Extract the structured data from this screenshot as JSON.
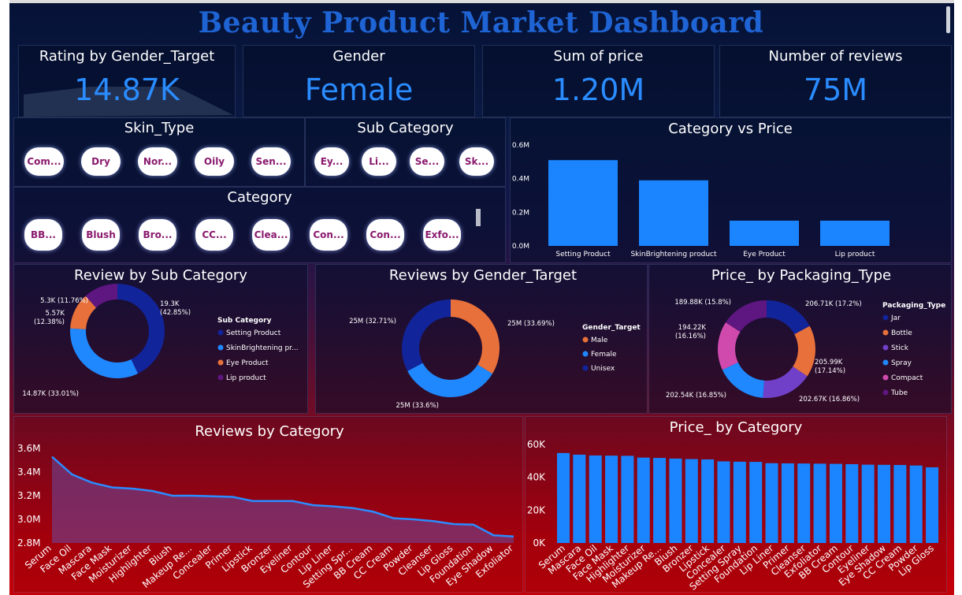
{
  "dashboard": {
    "title": "Beauty Product Market Dashboard"
  },
  "colors": {
    "accent": "#2a8cff",
    "pill_text": "#8a1a6e",
    "bar": "#1a85ff"
  },
  "kpis": [
    {
      "label": "Rating by Gender_Target",
      "value": "14.87K"
    },
    {
      "label": "Gender",
      "value": "Female"
    },
    {
      "label": "Sum of price",
      "value": "1.20M"
    },
    {
      "label": "Number of reviews",
      "value": "75M"
    }
  ],
  "slicers": {
    "skin_type": {
      "title": "Skin_Type",
      "items": [
        "Com...",
        "Dry",
        "Nor...",
        "Oily",
        "Sen..."
      ]
    },
    "sub_category": {
      "title": "Sub Category",
      "items": [
        "Ey...",
        "Li...",
        "Se...",
        "Sk..."
      ]
    },
    "category": {
      "title": "Category",
      "items": [
        "BB...",
        "Blush",
        "Bro...",
        "CC...",
        "Clea...",
        "Con...",
        "Con...",
        "Exfo..."
      ]
    }
  },
  "charts": {
    "category_vs_price": {
      "title": "Category vs Price",
      "chart_data": {
        "type": "bar",
        "categories": [
          "Setting Product",
          "SkinBrightening product",
          "Eye Product",
          "Lip product"
        ],
        "values": [
          510000,
          390000,
          150000,
          150000
        ],
        "ylim": [
          0,
          600000
        ],
        "yticks": [
          "0.0M",
          "0.2M",
          "0.4M",
          "0.6M"
        ]
      }
    },
    "review_by_sub_category": {
      "title": "Review by Sub Category",
      "legend_title": "Sub Category",
      "chart_data": {
        "type": "pie",
        "labels": [
          "Setting Product",
          "SkinBrightening pr...",
          "Eye Product",
          "Lip product"
        ],
        "values": [
          19.3,
          14.87,
          5.57,
          5.3
        ],
        "slice_labels": [
          "19.3K (42.85%)",
          "14.87K (33.01%)",
          "5.57K (12.38%)",
          "5.3K (11.76%)"
        ],
        "colors": [
          "#12249a",
          "#1f88ff",
          "#e8703a",
          "#5e1680"
        ]
      }
    },
    "reviews_by_gender_target": {
      "title": "Reviews by Gender_Target",
      "legend_title": "Gender_Target",
      "chart_data": {
        "type": "pie",
        "labels": [
          "Male",
          "Female",
          "Unisex"
        ],
        "values": [
          33.69,
          33.6,
          32.71
        ],
        "slice_labels": [
          "25M (33.69%)",
          "25M (33.6%)",
          "25M (32.71%)"
        ],
        "colors": [
          "#e8703a",
          "#1f88ff",
          "#12249a"
        ]
      }
    },
    "price_by_packaging_type": {
      "title": "Price_ by Packaging_Type",
      "legend_title": "Packaging_Type",
      "chart_data": {
        "type": "pie",
        "labels": [
          "Jar",
          "Bottle",
          "Stick",
          "Spray",
          "Compact",
          "Tube"
        ],
        "values": [
          206.71,
          205.99,
          202.67,
          202.54,
          194.22,
          189.88
        ],
        "slice_labels": [
          "206.71K (17.2%)",
          "205.99K (17.14%)",
          "202.67K (16.86%)",
          "202.54K (16.85%)",
          "194.22K (16.16%)",
          "189.88K (15.8%)"
        ],
        "colors": [
          "#12249a",
          "#e8703a",
          "#7040c8",
          "#1f88ff",
          "#d04aae",
          "#5e1680"
        ]
      }
    },
    "reviews_by_category": {
      "title": "Reviews by Category",
      "chart_data": {
        "type": "area",
        "categories": [
          "Serum",
          "Face Oil",
          "Mascara",
          "Face Mask",
          "Moisturizer",
          "Highlighter",
          "Blush",
          "Makeup Re...",
          "Concealer",
          "Primer",
          "Lipstick",
          "Bronzer",
          "Eyeliner",
          "Contour",
          "Lip Liner",
          "Setting Spr...",
          "BB Cream",
          "CC Cream",
          "Powder",
          "Cleanser",
          "Lip Gloss",
          "Foundation",
          "Eye Shadow",
          "Exfoliator"
        ],
        "values": [
          3.53,
          3.38,
          3.31,
          3.27,
          3.26,
          3.24,
          3.2,
          3.2,
          3.195,
          3.19,
          3.155,
          3.155,
          3.155,
          3.12,
          3.11,
          3.095,
          3.065,
          3.01,
          3.0,
          2.985,
          2.96,
          2.955,
          2.865,
          2.855
        ],
        "ylim": [
          2.8,
          3.6
        ],
        "yticks": [
          "2.8M",
          "3.0M",
          "3.2M",
          "3.4M",
          "3.6M"
        ]
      }
    },
    "price_by_category": {
      "title": "Price_ by Category",
      "chart_data": {
        "type": "bar",
        "categories": [
          "Serum",
          "Mascara",
          "Face Oil",
          "Face Mask",
          "Highlighter",
          "Moisturizer",
          "Makeup Re...",
          "Blush",
          "Bronzer",
          "Lipstick",
          "Concealer",
          "Setting Spray",
          "Foundation",
          "Lip Liner",
          "Primer",
          "Cleanser",
          "Exfoliator",
          "BB Cream",
          "Contour",
          "Eyeliner",
          "Eye Shadow",
          "CC Cream",
          "Powder",
          "Lip Gloss"
        ],
        "values": [
          54800,
          53800,
          53300,
          53200,
          53100,
          52000,
          51800,
          51400,
          51100,
          50900,
          49700,
          49500,
          49400,
          48600,
          48500,
          48400,
          48300,
          48200,
          48000,
          47700,
          47600,
          47500,
          47200,
          46100
        ],
        "ylim": [
          0,
          60000
        ],
        "yticks": [
          "0K",
          "20K",
          "40K",
          "60K"
        ]
      }
    }
  }
}
